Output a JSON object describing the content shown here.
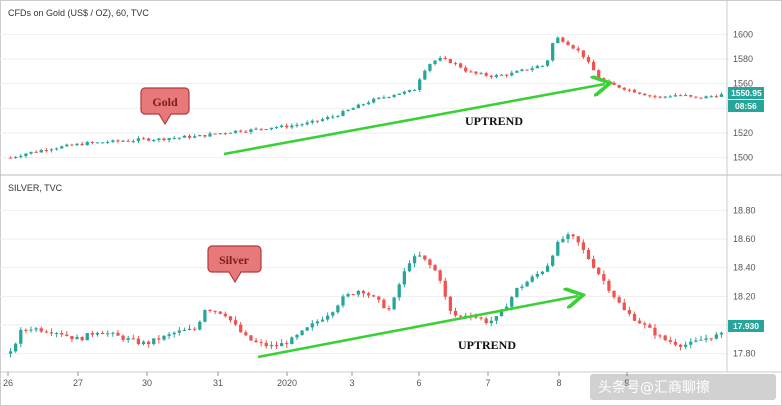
{
  "colors": {
    "up": "#26a69a",
    "down": "#ef5350",
    "arrow": "#39d135",
    "bubble_fill": "#e8797a",
    "bubble_stroke": "#b03a3a",
    "price_tag": "#26a69a",
    "grid": "#eeeeee",
    "axis_text": "#555555"
  },
  "watermark": "头条号@汇商聊擦",
  "chart_data": [
    {
      "type": "candlestick",
      "title": "CFDs on Gold (US$ / OZ), 60, TVC",
      "bubble_label": "Gold",
      "annotation": "UPTREND",
      "y_ticks": [
        1500,
        1520,
        1540,
        1560,
        1580,
        1600
      ],
      "ylim": [
        1490,
        1610
      ],
      "last_price": "1550.95",
      "countdown": "08:56",
      "series": [
        1500,
        1502,
        1504,
        1505,
        1507,
        1508,
        1509,
        1510,
        1511,
        1512,
        1512,
        1513,
        1513,
        1514,
        1514,
        1515,
        1515,
        1515,
        1516,
        1516,
        1517,
        1517,
        1518,
        1519,
        1520,
        1521,
        1522,
        1522,
        1523,
        1524,
        1525,
        1525,
        1526,
        1527,
        1528,
        1530,
        1532,
        1534,
        1537,
        1540,
        1543,
        1546,
        1548,
        1550,
        1552,
        1553,
        1555,
        1570,
        1578,
        1580,
        1578,
        1575,
        1570,
        1568,
        1567,
        1566,
        1567,
        1568,
        1570,
        1572,
        1574,
        1575,
        1598,
        1595,
        1590,
        1585,
        1575,
        1565,
        1560,
        1558,
        1556,
        1554,
        1552,
        1550,
        1549,
        1550,
        1551,
        1550,
        1548,
        1549,
        1550,
        1551
      ]
    },
    {
      "type": "candlestick",
      "title": "SILVER, TVC",
      "bubble_label": "Silver",
      "annotation": "UPTREND",
      "y_ticks": [
        17.8,
        18.0,
        18.2,
        18.4,
        18.6,
        18.8
      ],
      "ylim": [
        17.7,
        18.9
      ],
      "last_price": "17.930",
      "x_ticks": [
        "26",
        "27",
        "30",
        "31",
        "2020",
        "3",
        "6",
        "7",
        "8",
        "9"
      ],
      "series": [
        17.8,
        17.95,
        17.98,
        17.97,
        17.96,
        17.95,
        17.92,
        17.9,
        17.93,
        17.96,
        17.94,
        17.92,
        17.9,
        17.88,
        17.87,
        17.9,
        17.92,
        17.95,
        17.96,
        17.97,
        18.12,
        18.1,
        18.08,
        18.0,
        17.92,
        17.88,
        17.86,
        17.85,
        17.87,
        17.9,
        17.95,
        18.0,
        18.05,
        18.1,
        18.18,
        18.22,
        18.25,
        18.2,
        18.15,
        18.1,
        18.3,
        18.45,
        18.48,
        18.42,
        18.35,
        18.1,
        18.05,
        18.08,
        18.05,
        18.02,
        18.05,
        18.15,
        18.25,
        18.3,
        18.35,
        18.4,
        18.55,
        18.62,
        18.6,
        18.5,
        18.4,
        18.3,
        18.2,
        18.1,
        18.05,
        18.0,
        17.95,
        17.9,
        17.88,
        17.86,
        17.87,
        17.9,
        17.92,
        17.93
      ]
    }
  ]
}
